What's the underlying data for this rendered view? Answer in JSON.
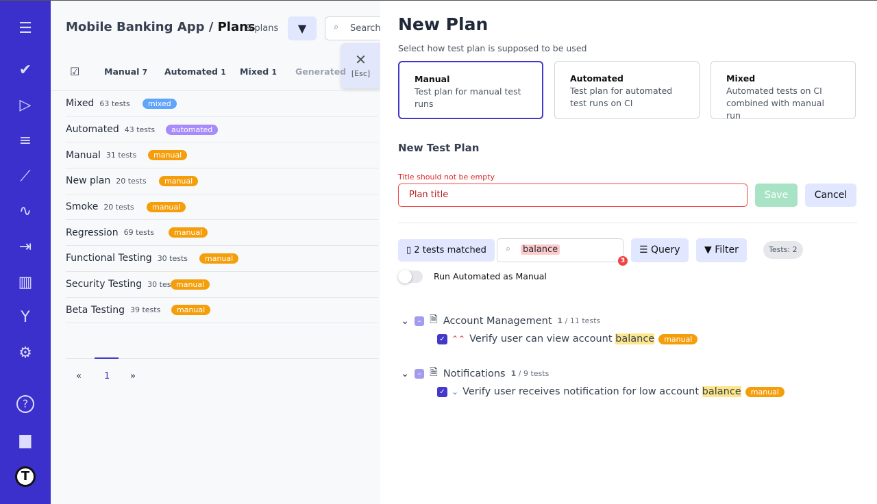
{
  "sidebar": {
    "items": [
      {
        "icon": "menu-icon",
        "g": "☰"
      },
      {
        "icon": "check-icon",
        "g": "✔"
      },
      {
        "icon": "play-icon",
        "g": "▷"
      },
      {
        "icon": "checklist-icon",
        "g": "≡"
      },
      {
        "icon": "steps-icon",
        "g": "⟋"
      },
      {
        "icon": "pulse-icon",
        "g": "∿"
      },
      {
        "icon": "import-icon",
        "g": "⇥"
      },
      {
        "icon": "chart-icon",
        "g": "▥"
      },
      {
        "icon": "branch-icon",
        "g": "Y"
      },
      {
        "icon": "gear-icon",
        "g": "⚙"
      },
      {
        "icon": "help-icon",
        "g": "?"
      },
      {
        "icon": "folder-icon",
        "g": "▆"
      },
      {
        "icon": "logo-icon",
        "g": "T"
      }
    ]
  },
  "header": {
    "project": "Mobile Banking App",
    "separator": "/",
    "page": "Plans",
    "count": "9 plans",
    "search_placeholder": "Search",
    "esc_label": "[Esc]"
  },
  "tabs": [
    {
      "label": "Manual",
      "count": "7"
    },
    {
      "label": "Automated",
      "count": "1"
    },
    {
      "label": "Mixed",
      "count": "1"
    },
    {
      "label": "Generated",
      "count": ""
    }
  ],
  "plans": [
    {
      "name": "Mixed",
      "tests": "63 tests",
      "type": "mixed",
      "color": "#60a5fa"
    },
    {
      "name": "Automated",
      "tests": "43 tests",
      "type": "automated",
      "color": "#a78bfa"
    },
    {
      "name": "Manual",
      "tests": "31 tests",
      "type": "manual",
      "color": "#f59e0b"
    },
    {
      "name": "New plan",
      "tests": "20 tests",
      "type": "manual",
      "color": "#f59e0b"
    },
    {
      "name": "Smoke",
      "tests": "20 tests",
      "type": "manual",
      "color": "#f59e0b"
    },
    {
      "name": "Regression",
      "tests": "69 tests",
      "type": "manual",
      "color": "#f59e0b"
    },
    {
      "name": "Functional Testing",
      "tests": "30 tests",
      "type": "manual",
      "color": "#f59e0b"
    },
    {
      "name": "Security Testing",
      "tests": "30 tests",
      "type": "manual",
      "color": "#f59e0b"
    },
    {
      "name": "Beta Testing",
      "tests": "39 tests",
      "type": "manual",
      "color": "#f59e0b"
    }
  ],
  "pager": {
    "prev": "«",
    "current": "1",
    "next": "»"
  },
  "form": {
    "title": "New Plan",
    "subtitle": "Select how test plan is supposed to be used",
    "types": [
      {
        "label": "Manual",
        "desc": "Test plan for manual test runs",
        "selected": true
      },
      {
        "label": "Automated",
        "desc": "Test plan for automated test runs on CI"
      },
      {
        "label": "Mixed",
        "desc": "Automated tests on CI combined with manual run"
      }
    ],
    "section": "New Test Plan",
    "error": "Title should not be empty",
    "title_placeholder": "Plan title",
    "save": "Save",
    "cancel": "Cancel",
    "matched": "2 tests matched",
    "search_value": "balance",
    "search_badge": "3",
    "query": "Query",
    "filter": "Filter",
    "tests_count": "Tests: 2",
    "toggle_label": "Run Automated as Manual",
    "toggle_on": false
  },
  "suites": [
    {
      "name": "Account Management",
      "selected": "1",
      "total": "/ 11 tests",
      "test": {
        "before": "Verify user can view account ",
        "match": "balance",
        "type": "manual",
        "priority": "high",
        "priority_glyph": "⌃⌃"
      }
    },
    {
      "name": "Notifications",
      "selected": "1",
      "total": "/ 9 tests",
      "test": {
        "before": "Verify user receives notification for low account ",
        "match": "balance",
        "type": "manual",
        "priority": "low",
        "priority_glyph": "⌄"
      }
    }
  ]
}
